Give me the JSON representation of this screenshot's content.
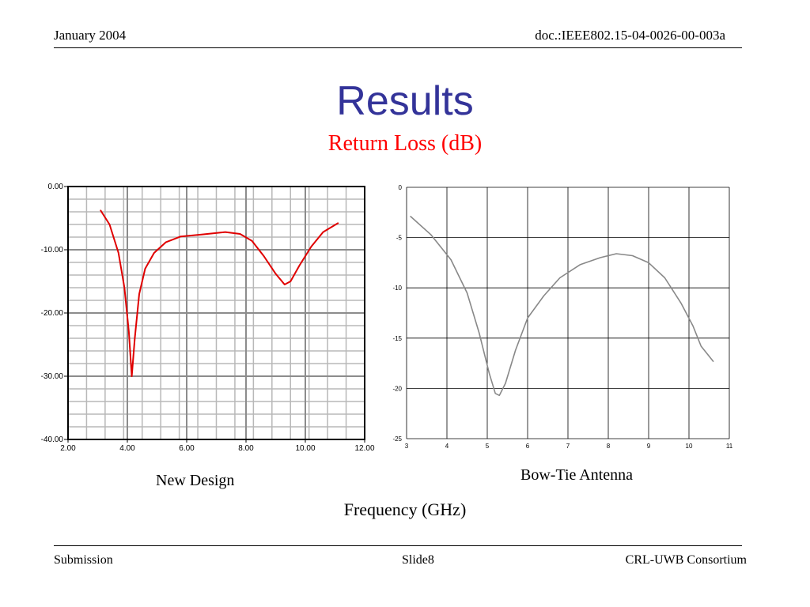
{
  "header": {
    "date": "January 2004",
    "doc": "doc.:IEEE802.15-04-0026-00-003a"
  },
  "title": "Results",
  "subtitle": "Return Loss (dB)",
  "xlabel": "Frequency (GHz)",
  "footer": {
    "left": "Submission",
    "center": "Slide8",
    "right": "CRL-UWB Consortium"
  },
  "chart_data": [
    {
      "type": "line",
      "caption": "New Design",
      "xlim": [
        2,
        12
      ],
      "ylim": [
        -40,
        0
      ],
      "x_ticks": [
        "2.00",
        "4.00",
        "6.00",
        "8.00",
        "10.00",
        "12.00"
      ],
      "y_ticks": [
        "0.00",
        "-10.00",
        "-20.00",
        "-30.00",
        "-40.00"
      ],
      "grid": true,
      "series": [
        {
          "color": "#e00000",
          "points": [
            [
              3.1,
              -3.8
            ],
            [
              3.4,
              -6
            ],
            [
              3.7,
              -10.5
            ],
            [
              3.9,
              -16
            ],
            [
              4.05,
              -23
            ],
            [
              4.15,
              -30
            ],
            [
              4.25,
              -24
            ],
            [
              4.4,
              -17
            ],
            [
              4.6,
              -13
            ],
            [
              4.9,
              -10.5
            ],
            [
              5.3,
              -8.8
            ],
            [
              5.8,
              -7.9
            ],
            [
              6.5,
              -7.6
            ],
            [
              7.3,
              -7.2
            ],
            [
              7.8,
              -7.5
            ],
            [
              8.2,
              -8.6
            ],
            [
              8.6,
              -11
            ],
            [
              9.0,
              -13.8
            ],
            [
              9.3,
              -15.5
            ],
            [
              9.5,
              -15
            ],
            [
              9.8,
              -12.5
            ],
            [
              10.2,
              -9.5
            ],
            [
              10.6,
              -7.2
            ],
            [
              11.1,
              -5.8
            ]
          ]
        }
      ]
    },
    {
      "type": "line",
      "caption": "Bow-Tie Antenna",
      "xlim": [
        3,
        11
      ],
      "ylim": [
        -25,
        0
      ],
      "x_ticks": [
        "3",
        "4",
        "5",
        "6",
        "7",
        "8",
        "9",
        "10",
        "11"
      ],
      "y_ticks": [
        "0",
        "-5",
        "-10",
        "-15",
        "-20",
        "-25"
      ],
      "grid": true,
      "series": [
        {
          "color": "#888888",
          "points": [
            [
              3.1,
              -2.9
            ],
            [
              3.6,
              -4.7
            ],
            [
              4.1,
              -7.2
            ],
            [
              4.5,
              -10.5
            ],
            [
              4.8,
              -14.5
            ],
            [
              5.05,
              -18.5
            ],
            [
              5.2,
              -20.5
            ],
            [
              5.3,
              -20.7
            ],
            [
              5.45,
              -19.5
            ],
            [
              5.7,
              -16.2
            ],
            [
              6.0,
              -13
            ],
            [
              6.4,
              -10.8
            ],
            [
              6.8,
              -9
            ],
            [
              7.3,
              -7.7
            ],
            [
              7.8,
              -7
            ],
            [
              8.2,
              -6.6
            ],
            [
              8.6,
              -6.8
            ],
            [
              9.0,
              -7.5
            ],
            [
              9.4,
              -9
            ],
            [
              9.8,
              -11.5
            ],
            [
              10.1,
              -13.8
            ],
            [
              10.3,
              -15.8
            ],
            [
              10.6,
              -17.3
            ]
          ]
        }
      ]
    }
  ]
}
